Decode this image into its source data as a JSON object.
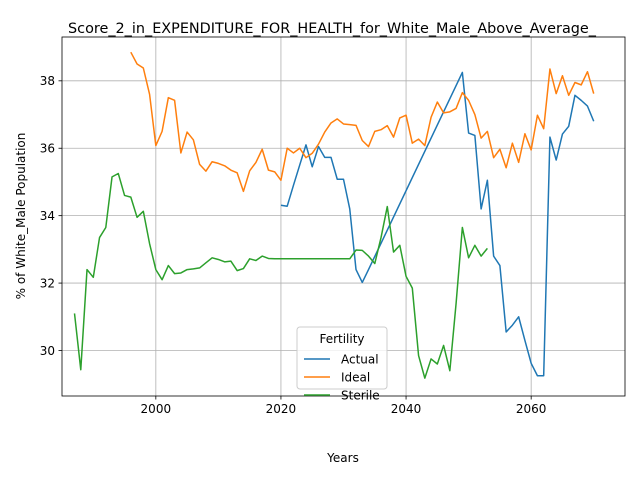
{
  "chart_data": {
    "type": "line",
    "title": "Score_2_in_EXPENDITURE_FOR_HEALTH_for_White_Male_Above_Average_",
    "xlabel": "Years",
    "ylabel": "% of White_Male Population",
    "xlim": [
      1985,
      2075
    ],
    "ylim": [
      28.65,
      39.3
    ],
    "xticks": [
      2000,
      2020,
      2040,
      2060
    ],
    "yticks": [
      30,
      32,
      34,
      36,
      38
    ],
    "grid": true,
    "legend": {
      "title": "Fertility",
      "placement": "lower-center"
    },
    "series": [
      {
        "name": "Actual",
        "color": "#1f77b4",
        "points": [
          [
            2020,
            34.31
          ],
          [
            2021,
            34.28
          ],
          [
            2022,
            34.9
          ],
          [
            2023,
            35.5
          ],
          [
            2024,
            36.1
          ],
          [
            2025,
            35.45
          ],
          [
            2026,
            36.05
          ],
          [
            2027,
            35.73
          ],
          [
            2028,
            35.73
          ],
          [
            2029,
            35.08
          ],
          [
            2030,
            35.08
          ],
          [
            2031,
            34.2
          ],
          [
            2032,
            32.4
          ],
          [
            2033,
            32.02
          ],
          [
            2034,
            32.4
          ],
          [
            2049,
            38.25
          ],
          [
            2050,
            36.45
          ],
          [
            2051,
            36.38
          ],
          [
            2052,
            34.2
          ],
          [
            2053,
            35.05
          ],
          [
            2054,
            32.8
          ],
          [
            2055,
            32.52
          ],
          [
            2056,
            30.55
          ],
          [
            2057,
            30.75
          ],
          [
            2058,
            31.0
          ],
          [
            2059,
            30.3
          ],
          [
            2060,
            29.62
          ],
          [
            2061,
            29.25
          ],
          [
            2062,
            29.25
          ],
          [
            2063,
            36.33
          ],
          [
            2064,
            35.65
          ],
          [
            2065,
            36.42
          ],
          [
            2066,
            36.65
          ],
          [
            2067,
            37.57
          ],
          [
            2068,
            37.42
          ],
          [
            2069,
            37.25
          ],
          [
            2070,
            36.8
          ]
        ]
      },
      {
        "name": "Ideal",
        "color": "#ff7f0e",
        "points": [
          [
            1996,
            38.85
          ],
          [
            1997,
            38.5
          ],
          [
            1998,
            38.38
          ],
          [
            1999,
            37.6
          ],
          [
            2000,
            36.08
          ],
          [
            2001,
            36.5
          ],
          [
            2002,
            37.5
          ],
          [
            2003,
            37.42
          ],
          [
            2004,
            35.86
          ],
          [
            2005,
            36.48
          ],
          [
            2006,
            36.25
          ],
          [
            2007,
            35.52
          ],
          [
            2008,
            35.32
          ],
          [
            2009,
            35.6
          ],
          [
            2010,
            35.55
          ],
          [
            2011,
            35.48
          ],
          [
            2012,
            35.35
          ],
          [
            2013,
            35.27
          ],
          [
            2014,
            34.72
          ],
          [
            2015,
            35.33
          ],
          [
            2016,
            35.58
          ],
          [
            2017,
            35.97
          ],
          [
            2018,
            35.35
          ],
          [
            2019,
            35.3
          ],
          [
            2020,
            35.05
          ],
          [
            2021,
            36.0
          ],
          [
            2022,
            35.86
          ],
          [
            2023,
            36.0
          ],
          [
            2024,
            35.72
          ],
          [
            2025,
            35.85
          ],
          [
            2026,
            36.12
          ],
          [
            2027,
            36.48
          ],
          [
            2028,
            36.75
          ],
          [
            2029,
            36.87
          ],
          [
            2030,
            36.72
          ],
          [
            2031,
            36.7
          ],
          [
            2032,
            36.68
          ],
          [
            2033,
            36.23
          ],
          [
            2034,
            36.05
          ],
          [
            2035,
            36.5
          ],
          [
            2036,
            36.55
          ],
          [
            2037,
            36.67
          ],
          [
            2038,
            36.33
          ],
          [
            2039,
            36.9
          ],
          [
            2040,
            36.98
          ],
          [
            2041,
            36.15
          ],
          [
            2042,
            36.27
          ],
          [
            2043,
            36.08
          ],
          [
            2044,
            36.92
          ],
          [
            2045,
            37.37
          ],
          [
            2046,
            37.05
          ],
          [
            2047,
            37.08
          ],
          [
            2048,
            37.18
          ],
          [
            2049,
            37.65
          ],
          [
            2050,
            37.42
          ],
          [
            2051,
            37.0
          ],
          [
            2052,
            36.3
          ],
          [
            2053,
            36.5
          ],
          [
            2054,
            35.72
          ],
          [
            2055,
            35.97
          ],
          [
            2056,
            35.42
          ],
          [
            2057,
            36.15
          ],
          [
            2058,
            35.58
          ],
          [
            2059,
            36.43
          ],
          [
            2060,
            35.95
          ],
          [
            2061,
            36.98
          ],
          [
            2062,
            36.58
          ],
          [
            2063,
            38.35
          ],
          [
            2064,
            37.62
          ],
          [
            2065,
            38.15
          ],
          [
            2066,
            37.57
          ],
          [
            2067,
            37.95
          ],
          [
            2068,
            37.88
          ],
          [
            2069,
            38.27
          ],
          [
            2070,
            37.62
          ]
        ]
      },
      {
        "name": "Sterile",
        "color": "#2ca02c",
        "points": [
          [
            1987,
            31.1
          ],
          [
            1988,
            29.43
          ],
          [
            1989,
            32.4
          ],
          [
            1990,
            32.17
          ],
          [
            1991,
            33.35
          ],
          [
            1992,
            33.65
          ],
          [
            1993,
            35.15
          ],
          [
            1994,
            35.25
          ],
          [
            1995,
            34.6
          ],
          [
            1996,
            34.55
          ],
          [
            1997,
            33.95
          ],
          [
            1998,
            34.13
          ],
          [
            1999,
            33.17
          ],
          [
            2000,
            32.4
          ],
          [
            2001,
            32.1
          ],
          [
            2002,
            32.52
          ],
          [
            2003,
            32.28
          ],
          [
            2004,
            32.3
          ],
          [
            2005,
            32.4
          ],
          [
            2006,
            32.42
          ],
          [
            2007,
            32.45
          ],
          [
            2008,
            32.6
          ],
          [
            2009,
            32.75
          ],
          [
            2010,
            32.7
          ],
          [
            2011,
            32.63
          ],
          [
            2012,
            32.65
          ],
          [
            2013,
            32.37
          ],
          [
            2014,
            32.43
          ],
          [
            2015,
            32.72
          ],
          [
            2016,
            32.67
          ],
          [
            2017,
            32.8
          ],
          [
            2018,
            32.73
          ],
          [
            2019,
            32.72
          ],
          [
            2020,
            32.72
          ],
          [
            2021,
            32.72
          ],
          [
            2022,
            32.72
          ],
          [
            2023,
            32.72
          ],
          [
            2024,
            32.72
          ],
          [
            2025,
            32.72
          ],
          [
            2026,
            32.72
          ],
          [
            2027,
            32.72
          ],
          [
            2028,
            32.72
          ],
          [
            2029,
            32.72
          ],
          [
            2030,
            32.72
          ],
          [
            2031,
            32.72
          ],
          [
            2032,
            32.98
          ],
          [
            2033,
            32.97
          ],
          [
            2034,
            32.8
          ],
          [
            2035,
            32.58
          ],
          [
            2036,
            33.35
          ],
          [
            2037,
            34.27
          ],
          [
            2038,
            32.92
          ],
          [
            2039,
            33.12
          ],
          [
            2040,
            32.2
          ],
          [
            2041,
            31.85
          ],
          [
            2042,
            29.85
          ],
          [
            2043,
            29.18
          ],
          [
            2044,
            29.75
          ],
          [
            2045,
            29.6
          ],
          [
            2046,
            30.15
          ],
          [
            2047,
            29.4
          ],
          [
            2048,
            31.4
          ],
          [
            2049,
            33.65
          ],
          [
            2050,
            32.75
          ],
          [
            2051,
            33.12
          ],
          [
            2052,
            32.8
          ],
          [
            2053,
            33.03
          ]
        ]
      }
    ]
  }
}
